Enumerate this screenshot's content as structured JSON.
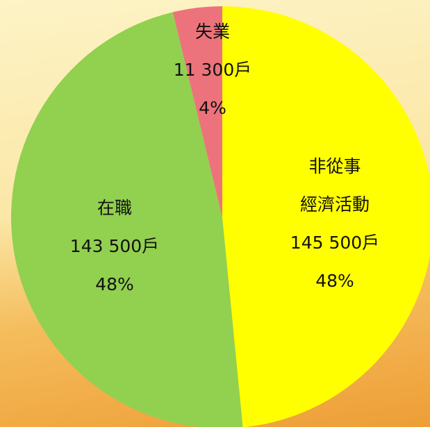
{
  "chart_data": {
    "type": "pie",
    "categories": [
      "非從事\n經濟活動",
      "在職",
      "失業"
    ],
    "values": [
      145500,
      143500,
      11300
    ],
    "value_labels": [
      "145 500戶",
      "143 500戶",
      "11 300戶"
    ],
    "percent_labels": [
      "48%",
      "48%",
      "4%"
    ],
    "colors": [
      "#ffff00",
      "#92d050",
      "#ec737b"
    ]
  }
}
